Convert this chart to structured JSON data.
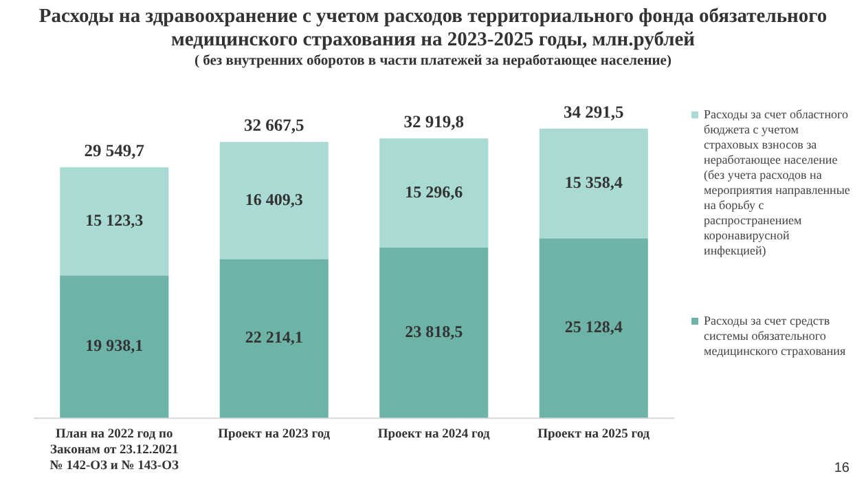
{
  "chart_data": {
    "type": "bar",
    "stacked": true,
    "title": "Расходы на здравоохранение с учетом расходов территориального фонда обязательного медицинского страхования на 2023-2025 годы, млн.рублей",
    "subtitle": "( без внутренних оборотов в части платежей за неработающее население)",
    "categories": [
      "План на 2022 год по Законам от 23.12.2021 № 142-ОЗ и № 143-ОЗ",
      "Проект на 2023 год",
      "Проект на 2024 год",
      "Проект на 2025 год"
    ],
    "series": [
      {
        "name": "Расходы за счет средств системы обязательного медицинского страхования",
        "color": "#6db3a8",
        "values": [
          19938.1,
          22214.1,
          23818.5,
          25128.4
        ],
        "value_labels": [
          "19 938,1",
          "22 214,1",
          "23 818,5",
          "25 128,4"
        ]
      },
      {
        "name": "Расходы за счет областного бюджета с учетом страховых взносов за неработающее население (без учета расходов на мероприятия направленные на борьбу с распространением коронавирусной инфекцией)",
        "color": "#a9dad3",
        "values": [
          15123.3,
          16409.3,
          15296.6,
          15358.4
        ],
        "value_labels": [
          "15 123,3",
          "16 409,3",
          "15 296,6",
          "15 358,4"
        ]
      }
    ],
    "legend": "right",
    "grid": false,
    "annotations": [
      {
        "text": "29 549,7",
        "x": "План на 2022 год по Законам от 23.12.2021 № 142-ОЗ и № 143-ОЗ",
        "y": 35061.4
      },
      {
        "text": "32 667,5",
        "x": "Проект на 2023 год",
        "y": 38623.4
      },
      {
        "text": "32 919,8",
        "x": "Проект на 2024 год",
        "y": 39115.1
      },
      {
        "text": "34 291,5",
        "x": "Проект на 2025 год",
        "y": 40486.8
      },
      "16"
    ]
  }
}
